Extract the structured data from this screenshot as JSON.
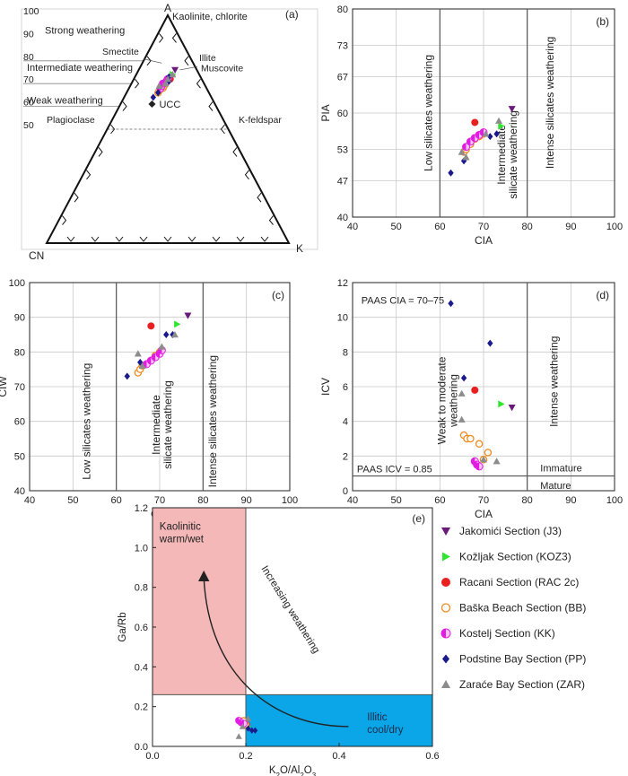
{
  "series": [
    {
      "key": "J3",
      "name": "Jakomići Section (J3)",
      "marker": "tri-down",
      "color": "#6a1b7a",
      "fill": true
    },
    {
      "key": "KOZ3",
      "name": "Kožljak Section (KOZ3)",
      "marker": "tri-right",
      "color": "#2ee62e",
      "fill": true
    },
    {
      "key": "RAC",
      "name": "Racani Section (RAC 2c)",
      "marker": "circle",
      "color": "#e8201f",
      "fill": true
    },
    {
      "key": "BB",
      "name": "Baška Beach Section (BB)",
      "marker": "circle-open",
      "color": "#ee8a1e",
      "fill": false
    },
    {
      "key": "KK",
      "name": "Kostelj Section (KK)",
      "marker": "circle-half",
      "color": "#e21de2",
      "fill": true
    },
    {
      "key": "PP",
      "name": "Podstine Bay Section (PP)",
      "marker": "diamond",
      "color": "#1a1a8c",
      "fill": true
    },
    {
      "key": "ZAR",
      "name": "Zaraće Bay Section (ZAR)",
      "marker": "tri-up",
      "color": "#8c8c8c",
      "fill": true
    }
  ],
  "chart_data": [
    {
      "id": "a",
      "type": "ternary",
      "panel_label": "(a)",
      "vertex_labels": {
        "top": "A",
        "left": "CN",
        "right": "K"
      },
      "scale_ticks": [
        "100",
        "90",
        "80",
        "70",
        "60",
        "50"
      ],
      "labels": {
        "strong": "Strong weathering",
        "intermediate": "Intermediate weathering",
        "weak": "Weak weathering",
        "kaolinite": "Kaolinite, chlorite",
        "smectite": "Smectite",
        "illite": "Illite",
        "muscovite": "Muscovite",
        "plagioclase": "Plagioclase",
        "kfeldspar": "K-feldspar",
        "ucc": "UCC"
      },
      "ucc": {
        "a": 61,
        "k": 13
      },
      "points": {
        "J3": [
          [
            76,
            15
          ]
        ],
        "KOZ3": [
          [
            74,
            15
          ]
        ],
        "RAC": [
          [
            72,
            15
          ]
        ],
        "BB": [
          [
            66,
            13
          ],
          [
            67,
            13
          ],
          [
            68,
            14
          ],
          [
            69,
            14
          ],
          [
            70,
            14
          ],
          [
            70,
            13
          ]
        ],
        "KK": [
          [
            68,
            13
          ],
          [
            69,
            13
          ],
          [
            70,
            13
          ],
          [
            71,
            14
          ],
          [
            72,
            14
          ],
          [
            71,
            14
          ]
        ],
        "PP": [
          [
            64,
            12
          ],
          [
            66,
            13
          ],
          [
            71,
            15
          ],
          [
            73,
            14
          ]
        ],
        "ZAR": [
          [
            69,
            12
          ],
          [
            72,
            14
          ],
          [
            74,
            15
          ],
          [
            70,
            14
          ]
        ]
      }
    },
    {
      "id": "b",
      "type": "scatter",
      "panel_label": "(b)",
      "xlabel": "CIA",
      "ylabel": "PIA",
      "xlim": [
        40,
        100
      ],
      "ylim": [
        40,
        80
      ],
      "xticks": [
        40,
        50,
        60,
        70,
        80,
        90,
        100
      ],
      "yticks": [
        40,
        47,
        53,
        60,
        67,
        73,
        80
      ],
      "vlines": [
        60,
        80
      ],
      "region_labels": [
        "Low silicates weathering",
        "Intermediate silicate weathering",
        "Intense silicates weathering"
      ],
      "points": {
        "J3": [
          [
            76.5,
            60.8
          ]
        ],
        "KOZ3": [
          [
            74,
            57.5
          ]
        ],
        "RAC": [
          [
            68,
            58.2
          ]
        ],
        "BB": [
          [
            65.5,
            52.5
          ],
          [
            66,
            53
          ],
          [
            67,
            54
          ],
          [
            68,
            55
          ],
          [
            69,
            55.5
          ],
          [
            70,
            56
          ]
        ],
        "KK": [
          [
            66,
            53.5
          ],
          [
            67,
            54.5
          ],
          [
            68,
            55.2
          ],
          [
            69,
            55.8
          ],
          [
            70,
            56.3
          ]
        ],
        "PP": [
          [
            62.5,
            48.5
          ],
          [
            65.5,
            50.8
          ],
          [
            71.5,
            55.5
          ],
          [
            73,
            56
          ]
        ],
        "ZAR": [
          [
            65,
            52.5
          ],
          [
            66,
            51.5
          ],
          [
            70.5,
            56
          ],
          [
            73.5,
            58.5
          ]
        ]
      }
    },
    {
      "id": "c",
      "type": "scatter",
      "panel_label": "(c)",
      "xlabel": "CIA",
      "ylabel": "CIW",
      "xlim": [
        40,
        100
      ],
      "ylim": [
        40,
        100
      ],
      "xticks": [
        40,
        50,
        60,
        70,
        80,
        90,
        100
      ],
      "yticks": [
        40,
        50,
        60,
        70,
        80,
        90,
        100
      ],
      "vlines": [
        60,
        80
      ],
      "region_labels": [
        "Low silicates weathering",
        "Intermediate silicate weathering",
        "Intense silicates weathering"
      ],
      "points": {
        "J3": [
          [
            76.5,
            90.5
          ]
        ],
        "KOZ3": [
          [
            74,
            88
          ]
        ],
        "RAC": [
          [
            68,
            87.5
          ]
        ],
        "BB": [
          [
            65,
            74
          ],
          [
            65.5,
            75
          ],
          [
            66,
            76
          ],
          [
            68,
            77.5
          ],
          [
            69,
            79
          ],
          [
            70,
            80
          ]
        ],
        "KK": [
          [
            67,
            76.5
          ],
          [
            68,
            77.5
          ],
          [
            69,
            78.5
          ],
          [
            70,
            79.5
          ],
          [
            70.5,
            80.5
          ]
        ],
        "PP": [
          [
            62.5,
            73
          ],
          [
            65.5,
            77
          ],
          [
            71.5,
            85
          ],
          [
            73,
            85
          ]
        ],
        "ZAR": [
          [
            65,
            79.5
          ],
          [
            66,
            76
          ],
          [
            70.5,
            81.5
          ],
          [
            73.5,
            85
          ]
        ]
      }
    },
    {
      "id": "d",
      "type": "scatter",
      "panel_label": "(d)",
      "xlabel": "CIA",
      "ylabel": "ICV",
      "xlim": [
        40,
        100
      ],
      "ylim": [
        0,
        12
      ],
      "xticks": [
        40,
        50,
        60,
        70,
        80,
        90,
        100
      ],
      "yticks": [
        0,
        2,
        4,
        6,
        8,
        10,
        12
      ],
      "vlines": [
        80
      ],
      "hlines": [
        0.85
      ],
      "text": {
        "paas_cia": "PAAS  CIA = 70–75",
        "paas_icv": "PAAS  ICV = 0.85",
        "weak": "Weak to moderate weathering",
        "intense": "Intense weathering",
        "immature": "Immature",
        "mature": "Mature"
      },
      "points": {
        "J3": [
          [
            76.5,
            4.8
          ]
        ],
        "KOZ3": [
          [
            74,
            5
          ]
        ],
        "RAC": [
          [
            68,
            5.8
          ]
        ],
        "BB": [
          [
            65.5,
            3.2
          ],
          [
            66.2,
            3.0
          ],
          [
            67,
            3.0
          ],
          [
            69,
            2.7
          ],
          [
            71,
            2.2
          ],
          [
            70,
            1.8
          ]
        ],
        "KK": [
          [
            68,
            1.7
          ],
          [
            68.5,
            1.5
          ],
          [
            69,
            1.4
          ]
        ],
        "PP": [
          [
            62.5,
            10.8
          ],
          [
            65.5,
            6.5
          ],
          [
            71.5,
            8.5
          ]
        ],
        "ZAR": [
          [
            65,
            5.6
          ],
          [
            65,
            4.1
          ],
          [
            70,
            1.8
          ],
          [
            73,
            1.7
          ]
        ]
      }
    },
    {
      "id": "e",
      "type": "scatter",
      "panel_label": "(e)",
      "xlabel": "K2O/Al2O3",
      "ylabel": "Ga/Rb",
      "xlim": [
        0,
        0.6
      ],
      "ylim": [
        0,
        1.2
      ],
      "xticks": [
        "0.0",
        "0.2",
        "0.4",
        "0.6"
      ],
      "yticks": [
        "0.0",
        "0.2",
        "0.4",
        "0.6",
        "0.8",
        "1.0",
        "1.2"
      ],
      "regions": {
        "kaolinitic": {
          "x": [
            0,
            0.2
          ],
          "y": [
            0.26,
            1.2
          ],
          "color": "#f4b8b8",
          "label1": "Kaolinitic",
          "label2": "warm/wet"
        },
        "illitic": {
          "x": [
            0.2,
            0.6
          ],
          "y": [
            0,
            0.26
          ],
          "color": "#0aa6e8",
          "label1": "Illitic",
          "label2": "cool/dry"
        }
      },
      "arrow_label": "Increasing weathering",
      "points": {
        "J3": [
          [
            0.197,
            0.115
          ]
        ],
        "KOZ3": [
          [
            0.205,
            0.1
          ]
        ],
        "RAC": [
          [
            0.202,
            0.11
          ]
        ],
        "BB": [
          [
            0.19,
            0.12
          ],
          [
            0.195,
            0.13
          ],
          [
            0.2,
            0.11
          ]
        ],
        "KK": [
          [
            0.185,
            0.13
          ],
          [
            0.19,
            0.12
          ],
          [
            0.196,
            0.115
          ]
        ],
        "PP": [
          [
            0.205,
            0.09
          ],
          [
            0.213,
            0.08
          ],
          [
            0.22,
            0.08
          ]
        ],
        "ZAR": [
          [
            0.185,
            0.05
          ],
          [
            0.205,
            0.14
          ],
          [
            0.193,
            0.1
          ]
        ]
      }
    }
  ]
}
